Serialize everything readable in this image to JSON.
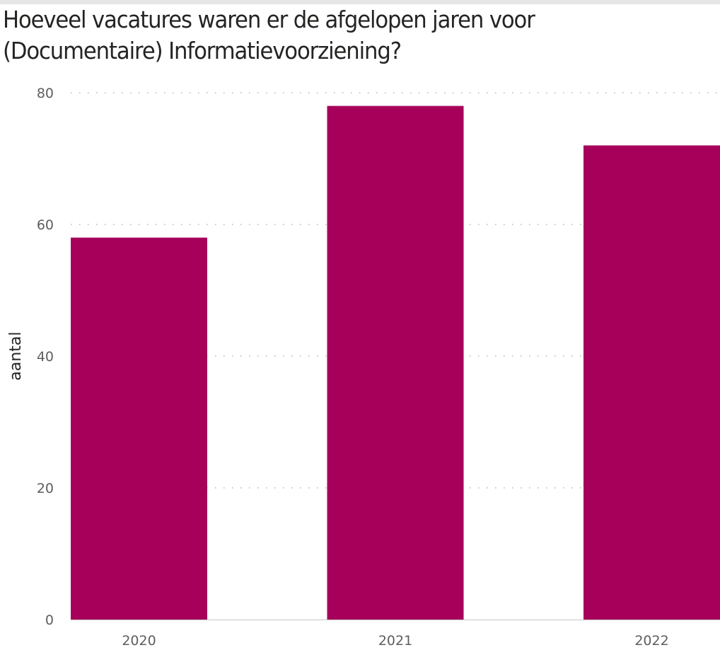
{
  "chart_data": {
    "type": "bar",
    "title_lines": [
      "Hoeveel vacatures waren er de afgelopen jaren voor",
      "(Documentaire) Informatievoorziening?"
    ],
    "categories": [
      "2020",
      "2021",
      "2022"
    ],
    "values": [
      58,
      78,
      72
    ],
    "xlabel": "",
    "ylabel": "aantal",
    "ylim": [
      0,
      80
    ],
    "yticks": [
      "0",
      "20",
      "40",
      "60",
      "80"
    ],
    "grid": "horizontal dotted",
    "legend": "none",
    "colors": {
      "bar": "#A6005A",
      "grid": "#c8c8c8",
      "text": "#252423",
      "tick": "#605e5c"
    }
  }
}
